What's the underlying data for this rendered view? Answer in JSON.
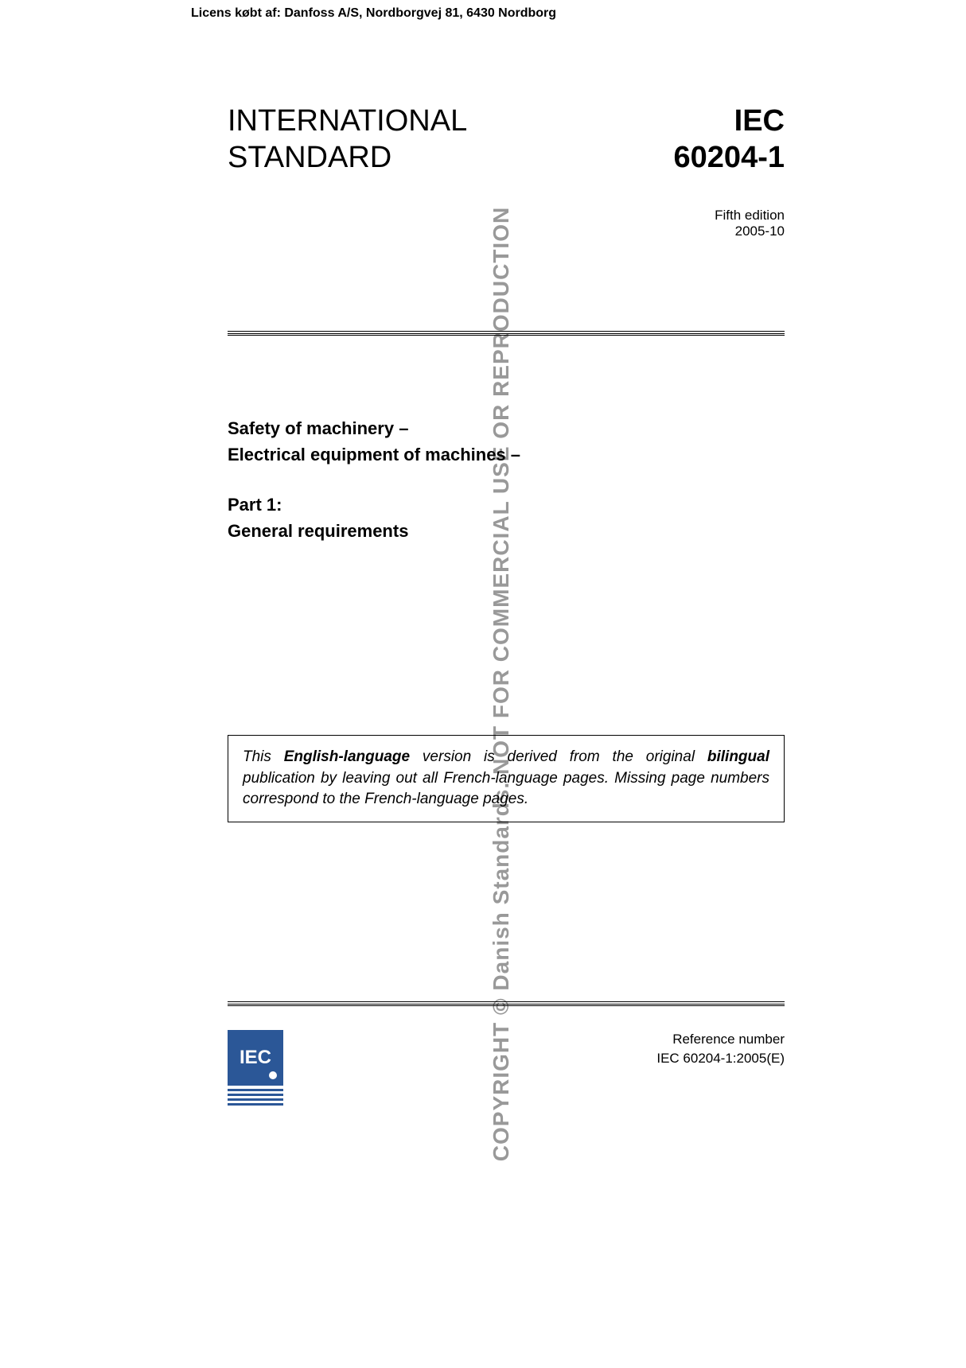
{
  "license_header": "Licens købt af: Danfoss A/S, Nordborgvej 81, 6430 Nordborg",
  "copyright_side": "COPYRIGHT © Danish Standards. NOT FOR COMMERCIAL USE OR REPRODUCTION",
  "title_left_line1": "INTERNATIONAL",
  "title_left_line2": "STANDARD",
  "title_right_line1": "IEC",
  "title_right_line2": "60204-1",
  "edition_line1": "Fifth edition",
  "edition_line2": "2005-10",
  "subject_line1": "Safety of machinery –",
  "subject_line2": "Electrical equipment of machines –",
  "part_line1": "Part 1:",
  "part_line2": "General requirements",
  "note_text_pre": "This ",
  "note_bold1": "English-language",
  "note_text_mid1": " version is derived from the original ",
  "note_bold2": "bilingual",
  "note_text_post": " publication by leaving out all French-language pages. Missing page numbers correspond to the French-language pages.",
  "logo_text": "IEC",
  "ref_label": "Reference number",
  "ref_number": "IEC 60204-1:2005(E)",
  "colors": {
    "logo_bg": "#2b5797",
    "copyright_text": "#999999"
  }
}
